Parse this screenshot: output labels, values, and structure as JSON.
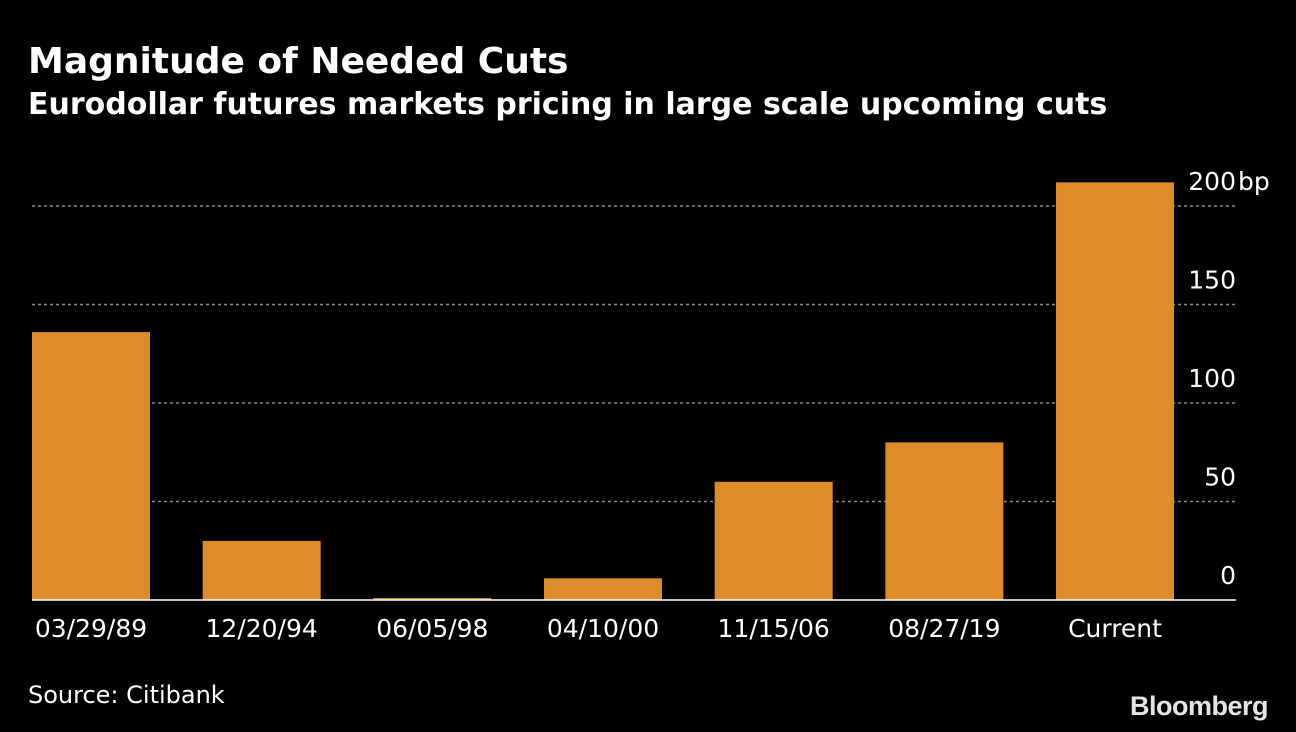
{
  "colors": {
    "background": "#000000",
    "bar": "#dd8c27",
    "grid": "#8a8a8a",
    "text": "#ffffff"
  },
  "source": "Source: Citibank",
  "brand": "Bloomberg",
  "chart_data": {
    "type": "bar",
    "title": "Magnitude of Needed Cuts",
    "subtitle": "Eurodollar futures markets pricing in large scale upcoming cuts",
    "categories": [
      "03/29/89",
      "12/20/94",
      "06/05/98",
      "04/10/00",
      "11/15/06",
      "08/27/19",
      "Current"
    ],
    "values": [
      136,
      30,
      1,
      11,
      60,
      80,
      212
    ],
    "xlabel": "",
    "ylabel": "",
    "unit_label": "bp",
    "ylim": [
      0,
      200
    ],
    "yticks": [
      0,
      50,
      100,
      150,
      200
    ],
    "ytick_labels": [
      "0",
      "50",
      "100",
      "150",
      "200"
    ],
    "grid": true,
    "axis_position": "right"
  }
}
